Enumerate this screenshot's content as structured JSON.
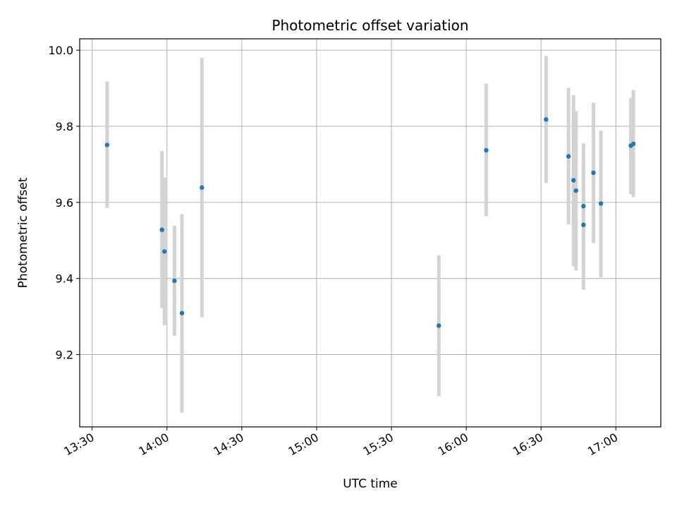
{
  "chart_data": {
    "type": "scatter",
    "title": "Photometric offset variation",
    "xlabel": "UTC time",
    "ylabel": "Photometric offset",
    "x_ticks": [
      "13:30",
      "14:00",
      "14:30",
      "15:00",
      "15:30",
      "16:00",
      "16:30",
      "17:00"
    ],
    "y_ticks": [
      "9.2",
      "9.4",
      "9.6",
      "9.8",
      "10.0"
    ],
    "xlim": [
      "13:25",
      "17:18"
    ],
    "ylim": [
      9.01,
      10.03
    ],
    "grid": true,
    "colors": {
      "point": "#1f77b4",
      "error_bar": "#d3d3d3",
      "grid": "#b0b0b0"
    },
    "points": [
      {
        "x": "13:36",
        "y": 9.751,
        "y_low": 9.585,
        "y_high": 9.918
      },
      {
        "x": "13:58",
        "y": 9.528,
        "y_low": 9.322,
        "y_high": 9.735
      },
      {
        "x": "13:59",
        "y": 9.471,
        "y_low": 9.277,
        "y_high": 9.666
      },
      {
        "x": "14:03",
        "y": 9.394,
        "y_low": 9.249,
        "y_high": 9.539
      },
      {
        "x": "14:06",
        "y": 9.309,
        "y_low": 9.047,
        "y_high": 9.569
      },
      {
        "x": "14:14",
        "y": 9.639,
        "y_low": 9.298,
        "y_high": 9.98
      },
      {
        "x": "15:49",
        "y": 9.276,
        "y_low": 9.091,
        "y_high": 9.461
      },
      {
        "x": "16:08",
        "y": 9.737,
        "y_low": 9.564,
        "y_high": 9.912
      },
      {
        "x": "16:32",
        "y": 9.818,
        "y_low": 9.651,
        "y_high": 9.985
      },
      {
        "x": "16:41",
        "y": 9.721,
        "y_low": 9.542,
        "y_high": 9.901
      },
      {
        "x": "16:43",
        "y": 9.658,
        "y_low": 9.432,
        "y_high": 9.882
      },
      {
        "x": "16:44",
        "y": 9.631,
        "y_low": 9.421,
        "y_high": 9.84
      },
      {
        "x": "16:47",
        "y": 9.59,
        "y_low": 9.425,
        "y_high": 9.755
      },
      {
        "x": "16:47",
        "y": 9.541,
        "y_low": 9.371,
        "y_high": 9.713
      },
      {
        "x": "16:51",
        "y": 9.678,
        "y_low": 9.493,
        "y_high": 9.862
      },
      {
        "x": "16:54",
        "y": 9.597,
        "y_low": 9.403,
        "y_high": 9.789
      },
      {
        "x": "17:06",
        "y": 9.749,
        "y_low": 9.622,
        "y_high": 9.875
      },
      {
        "x": "17:07",
        "y": 9.754,
        "y_low": 9.614,
        "y_high": 9.895
      }
    ]
  }
}
